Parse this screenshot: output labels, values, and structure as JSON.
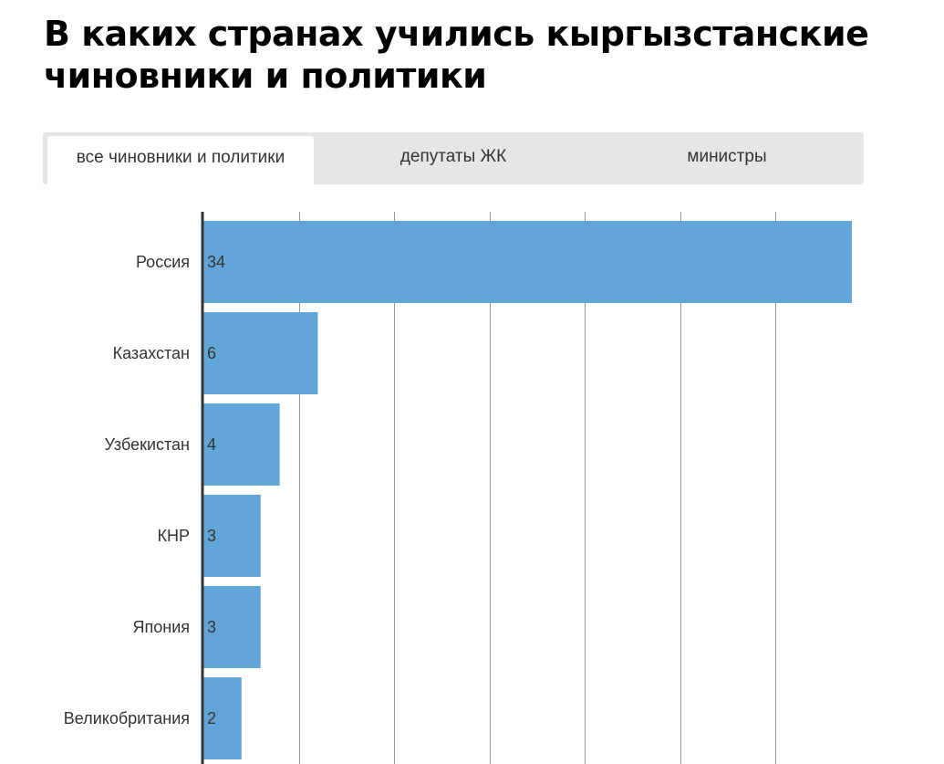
{
  "header": {
    "title": "В каких странах учились кыргызстанские чиновники и политики"
  },
  "tabs": [
    {
      "label": "все чиновники и политики",
      "active": true
    },
    {
      "label": "депутаты ЖК",
      "active": false
    },
    {
      "label": "министры",
      "active": false
    }
  ],
  "colors": {
    "bar": "#62a6d9",
    "grid": "#999999",
    "axis": "#333333",
    "tab_bg": "#e6e6e6"
  },
  "chart_data": {
    "type": "bar",
    "orientation": "horizontal",
    "categories": [
      "Россия",
      "Казахстан",
      "Узбекистан",
      "КНР",
      "Япония",
      "Великобритания"
    ],
    "values": [
      34,
      6,
      4,
      3,
      3,
      2
    ],
    "xlim": [
      0,
      34.5
    ],
    "grid": true,
    "x_gridlines": [
      5,
      10,
      15,
      20,
      25,
      30
    ]
  }
}
